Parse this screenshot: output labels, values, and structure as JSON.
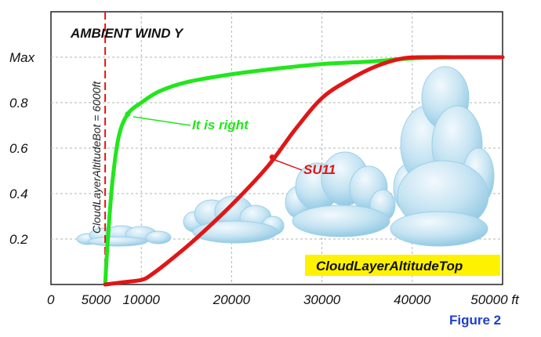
{
  "chart_data": {
    "type": "line",
    "title": "AMBIENT WIND Y",
    "xlim": [
      0,
      50000
    ],
    "ylim": [
      0,
      1
    ],
    "x_ticks": [
      {
        "value": 0,
        "label": "0"
      },
      {
        "value": 5000,
        "label": "5000"
      },
      {
        "value": 10000,
        "label": "10000"
      },
      {
        "value": 20000,
        "label": "20000"
      },
      {
        "value": 30000,
        "label": "30000"
      },
      {
        "value": 40000,
        "label": "40000"
      },
      {
        "value": 50000,
        "label": "50000 ft"
      }
    ],
    "y_ticks": [
      {
        "value": 0.2,
        "label": "0.2"
      },
      {
        "value": 0.4,
        "label": "0.4"
      },
      {
        "value": 0.6,
        "label": "0.6"
      },
      {
        "value": 0.8,
        "label": "0.8"
      },
      {
        "value": 1.0,
        "label": "Max"
      }
    ],
    "grid": true,
    "series": [
      {
        "name": "It is right",
        "color": "#22e61c",
        "x": [
          6000,
          6300,
          6800,
          7500,
          8500,
          10000,
          12000,
          15000,
          20000,
          25000,
          30000,
          35000,
          40000,
          45000,
          50000
        ],
        "values": [
          0.0,
          0.2,
          0.45,
          0.65,
          0.75,
          0.8,
          0.85,
          0.89,
          0.925,
          0.95,
          0.97,
          0.98,
          0.995,
          1.0,
          1.0
        ]
      },
      {
        "name": "SU11",
        "color": "#e01616",
        "x": [
          6000,
          8000,
          10000,
          11000,
          13000,
          16000,
          20000,
          24000,
          27000,
          30000,
          33000,
          36000,
          39000,
          42000,
          46000,
          50000
        ],
        "values": [
          0.0,
          0.01,
          0.02,
          0.04,
          0.1,
          0.2,
          0.35,
          0.52,
          0.68,
          0.82,
          0.9,
          0.96,
          0.995,
          1.0,
          1.0,
          1.0
        ]
      }
    ],
    "markers": [
      {
        "series": 0,
        "x": 8500,
        "y": 0.75
      },
      {
        "series": 1,
        "x": 24500,
        "y": 0.56
      }
    ],
    "vertical_line": {
      "x": 6000,
      "label": "CloudLayerAltitudeBot = 6000ft",
      "color": "#e01616"
    },
    "annotations": {
      "green_label": "It is right",
      "red_label": "SU11",
      "top_label": "CloudLayerAltitudeTop",
      "top_label_color": "#fff200"
    },
    "figure_label": "Figure 2"
  }
}
